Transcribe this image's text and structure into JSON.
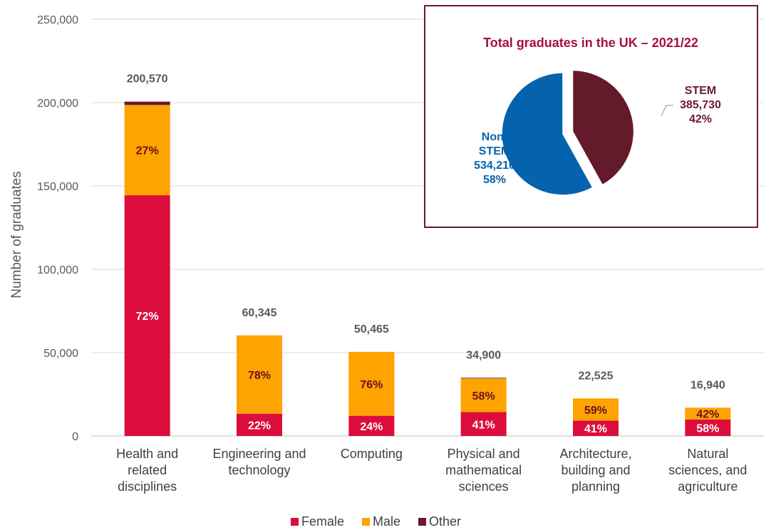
{
  "chart_data": [
    {
      "type": "bar",
      "stacked": true,
      "ylabel": "Number of graduates",
      "ylim": [
        0,
        250000
      ],
      "yticks": [
        0,
        50000,
        100000,
        150000,
        200000,
        250000
      ],
      "ytick_labels": [
        "0",
        "50,000",
        "100,000",
        "150,000",
        "200,000",
        "250,000"
      ],
      "grid": true,
      "legend_position": "bottom",
      "categories": [
        [
          "Health and",
          "related",
          "disciplines"
        ],
        [
          "Engineering and",
          "technology"
        ],
        [
          "Computing"
        ],
        [
          "Physical and",
          "mathematical",
          "sciences"
        ],
        [
          "Architecture,",
          "building and",
          "planning"
        ],
        [
          "Natural",
          "sciences, and",
          "agriculture"
        ]
      ],
      "totals": [
        200570,
        60345,
        50465,
        34900,
        22525,
        16940
      ],
      "total_labels": [
        "200,570",
        "60,345",
        "50,465",
        "34,900",
        "22,525",
        "16,940"
      ],
      "series": [
        {
          "name": "Female",
          "color": "#DC0D3D",
          "label_color": "#FFFFFF",
          "percent": [
            72,
            22,
            24,
            41,
            41,
            58
          ],
          "labels": [
            "72%",
            "22%",
            "24%",
            "41%",
            "41%",
            "58%"
          ]
        },
        {
          "name": "Male",
          "color": "#FFA300",
          "label_color": "#6B0F20",
          "percent": [
            27,
            78,
            76,
            58,
            59,
            42
          ],
          "labels": [
            "27%",
            "78%",
            "76%",
            "58%",
            "59%",
            "42%"
          ]
        },
        {
          "name": "Other",
          "color": "#6B1A2D",
          "label_color": "#FFFFFF",
          "percent": [
            1,
            0,
            0,
            1,
            0,
            0
          ],
          "labels": [
            "",
            "",
            "",
            "",
            "",
            ""
          ]
        }
      ]
    },
    {
      "type": "pie",
      "title": "Total graduates in the UK – 2021/22",
      "title_color": "#A3123A",
      "border_color": "#6B1A2D",
      "slices": [
        {
          "name": "STEM",
          "value": 385730,
          "percent": 42,
          "color": "#631A2B",
          "label_lines": [
            "STEM",
            "385,730",
            "42%"
          ],
          "label_color": "#6B1A2D",
          "exploded": true
        },
        {
          "name": "Non-STEM",
          "value": 534210,
          "percent": 58,
          "color": "#0563AE",
          "label_lines": [
            "Non-",
            "STEM",
            "534,210",
            "58%"
          ],
          "label_color": "#0563AE",
          "exploded": false
        }
      ]
    }
  ]
}
